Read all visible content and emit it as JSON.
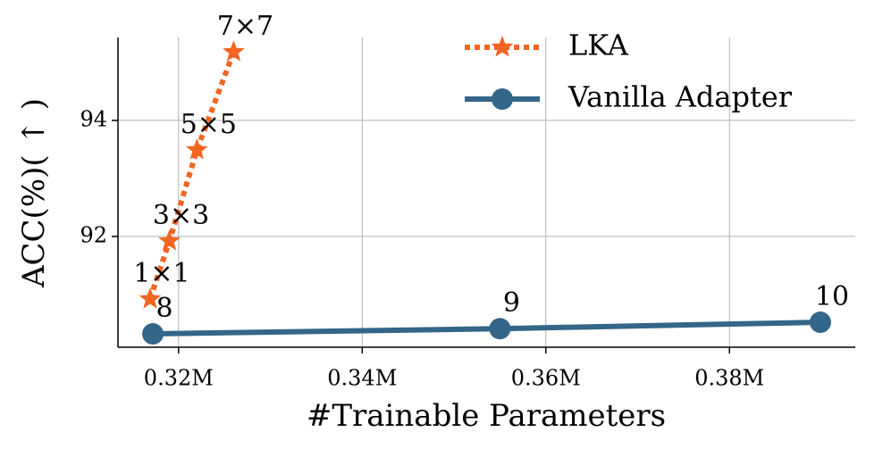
{
  "chart_data": {
    "type": "line",
    "xlabel": "#Trainable Parameters",
    "ylabel": "ACC(%)( ↑ )",
    "xlim": [
      0.3134,
      0.3937
    ],
    "ylim": [
      90.09,
      95.43
    ],
    "xticks": [
      {
        "value": 0.32,
        "label": "0.32M"
      },
      {
        "value": 0.34,
        "label": "0.34M"
      },
      {
        "value": 0.36,
        "label": "0.36M"
      },
      {
        "value": 0.38,
        "label": "0.38M"
      }
    ],
    "yticks": [
      92,
      94
    ],
    "grid": true,
    "legend": "upper right",
    "series": [
      {
        "name": "LKA",
        "color": "#f26522",
        "marker": "star",
        "linestyle": "dotted",
        "x": [
          0.3169,
          0.319,
          0.322,
          0.326
        ],
        "values": [
          90.92,
          91.92,
          93.49,
          95.18
        ],
        "labels": [
          "1×1",
          "3×3",
          "5×5",
          "7×7"
        ]
      },
      {
        "name": "Vanilla Adapter",
        "color": "#336688",
        "marker": "circle",
        "linestyle": "solid",
        "x": [
          0.3172,
          0.355,
          0.3899
        ],
        "values": [
          90.32,
          90.41,
          90.52
        ],
        "labels": [
          "8",
          "9",
          "10"
        ]
      }
    ]
  }
}
